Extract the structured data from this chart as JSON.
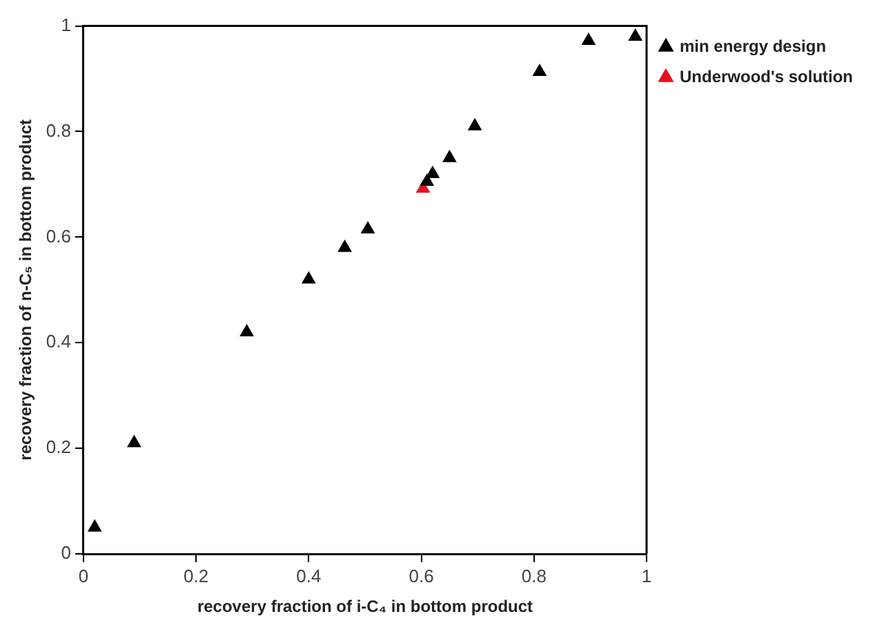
{
  "chart_data": {
    "type": "scatter",
    "xlabel": "recovery fraction of i-C₄ in bottom product",
    "ylabel": "recovery fraction of n-C₅ in bottom product",
    "xlim": [
      0,
      1
    ],
    "ylim": [
      0,
      1
    ],
    "xticks": [
      0,
      0.2,
      0.4,
      0.6,
      0.8,
      1
    ],
    "yticks": [
      0,
      0.2,
      0.4,
      0.6,
      0.8,
      1
    ],
    "grid": false,
    "legend": "top right",
    "marker": "triangle",
    "series": [
      {
        "name": "min energy design",
        "color": "#000000",
        "x": [
          0.02,
          0.09,
          0.29,
          0.4,
          0.464,
          0.505,
          0.61,
          0.62,
          0.65,
          0.695,
          0.81,
          0.897,
          0.98
        ],
        "values": [
          0.05,
          0.21,
          0.42,
          0.52,
          0.58,
          0.615,
          0.705,
          0.72,
          0.75,
          0.81,
          0.913,
          0.972,
          0.98
        ]
      },
      {
        "name": "Underwood's solution",
        "color": "#e8101c",
        "x": [
          0.603
        ],
        "values": [
          0.692
        ]
      }
    ]
  }
}
